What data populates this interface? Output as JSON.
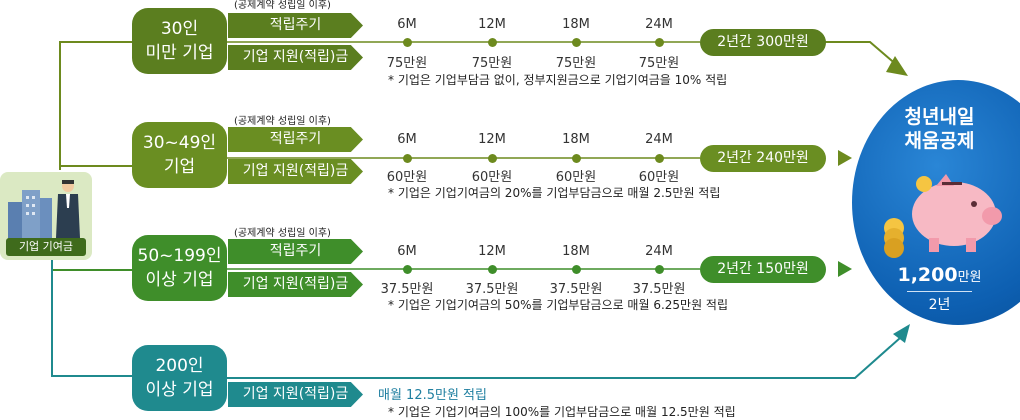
{
  "left_label": "기업 기여금",
  "contract_note": "(공제계약 성립일 이후)",
  "tier_labels": {
    "cycle": "적립주기",
    "support": "기업 지원(적립)금"
  },
  "months": [
    "6M",
    "12M",
    "18M",
    "24M"
  ],
  "tiers": [
    {
      "line1": "30인",
      "line2": "미만 기업",
      "amounts": [
        "75만원",
        "75만원",
        "75만원",
        "75만원"
      ],
      "total": "2년간 300만원",
      "footnote": "* 기업은 기업부담금 없이, 정부지원금으로 기업기여금을 10% 적립"
    },
    {
      "line1": "30~49인",
      "line2": "기업",
      "amounts": [
        "60만원",
        "60만원",
        "60만원",
        "60만원"
      ],
      "total": "2년간 240만원",
      "footnote": "* 기업은 기업기여금의 20%를 기업부담금으로 매월 2.5만원 적립"
    },
    {
      "line1": "50~199인",
      "line2": "이상 기업",
      "amounts": [
        "37.5만원",
        "37.5만원",
        "37.5만원",
        "37.5만원"
      ],
      "total": "2년간 150만원",
      "footnote": "* 기업은 기업기여금의 50%를 기업부담금으로 매월 6.25만원 적립"
    },
    {
      "line1": "200인",
      "line2": "이상 기업",
      "monthly": "매월 12.5만원 적립",
      "footnote": "* 기업은 기업기여금의 100%를 기업부담금으로 매월 12.5만원 적립"
    }
  ],
  "goal": {
    "title_line1": "청년내일",
    "title_line2": "채움공제",
    "amount": "1,200",
    "unit": "만원",
    "period": "2년"
  },
  "colors": {
    "tier1": "#5b7e1f",
    "tier2": "#6a8e22",
    "tier3": "#3f8e2a",
    "tier4": "#1f8a8e",
    "goal": "#0d5fb1"
  }
}
